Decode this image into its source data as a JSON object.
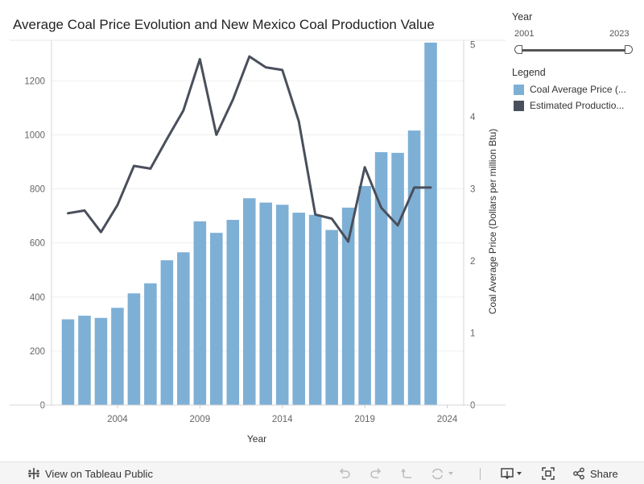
{
  "chart_data": {
    "type": "bar+line",
    "title": "Average Coal Price Evolution and New Mexico Coal Production Value",
    "xlabel": "Year",
    "ylabel_left": "",
    "ylabel_right": "Coal Average Price (Dollars per million Btu)",
    "x_ticks": [
      2004,
      2009,
      2014,
      2019,
      2024
    ],
    "y_left_ticks": [
      0,
      200,
      400,
      600,
      800,
      1000,
      1200
    ],
    "y_left_range": [
      0,
      1350
    ],
    "y_right_ticks": [
      0,
      1,
      2,
      3,
      4,
      5
    ],
    "y_right_range": [
      0,
      5.0625
    ],
    "x": [
      2001,
      2002,
      2003,
      2004,
      2005,
      2006,
      2007,
      2008,
      2009,
      2010,
      2011,
      2012,
      2013,
      2014,
      2015,
      2016,
      2017,
      2018,
      2019,
      2020,
      2021,
      2022,
      2023
    ],
    "series": [
      {
        "name": "Coal Average Price (Dollars per million Btu)",
        "legend_label": "Coal Average Price (...",
        "type": "bar",
        "axis": "right",
        "color": "#7eb0d6",
        "values": [
          1.19,
          1.24,
          1.21,
          1.35,
          1.55,
          1.69,
          2.01,
          2.12,
          2.55,
          2.39,
          2.57,
          2.87,
          2.81,
          2.78,
          2.67,
          2.64,
          2.43,
          2.74,
          3.04,
          3.51,
          3.5,
          3.81,
          5.03
        ]
      },
      {
        "name": "Estimated Production Value",
        "legend_label": "Estimated Productio...",
        "type": "line",
        "axis": "left",
        "color": "#4a4f5c",
        "values": [
          710,
          720,
          640,
          740,
          885,
          875,
          985,
          1090,
          1280,
          1000,
          1130,
          1290,
          1250,
          1240,
          1050,
          705,
          690,
          605,
          880,
          730,
          665,
          805,
          805
        ]
      }
    ]
  },
  "filter": {
    "heading": "Year",
    "min_label": "2001",
    "max_label": "2023"
  },
  "legend": {
    "heading": "Legend"
  },
  "footer": {
    "view_label": "View on Tableau Public",
    "share_label": "Share"
  }
}
